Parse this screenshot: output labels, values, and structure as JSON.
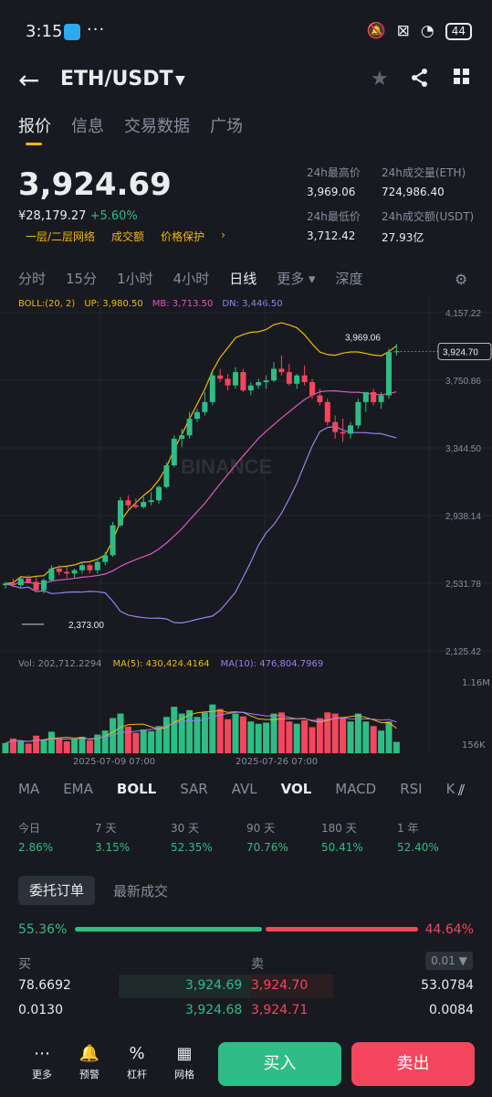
{
  "status": {
    "time": "3:15",
    "dots": "···",
    "battery": "44"
  },
  "header": {
    "back": "←",
    "pair": "ETH/USDT",
    "caret": "▼"
  },
  "tabs": [
    "报价",
    "信息",
    "交易数据",
    "广场"
  ],
  "price": {
    "last": "3,924.69",
    "fiat": "¥28,179.27",
    "change": "+5.60%"
  },
  "links": [
    "一层/二层网络",
    "成交额",
    "价格保护",
    "›"
  ],
  "stats": {
    "high_label": "24h最高价",
    "high": "3,969.06",
    "vol_eth_label": "24h成交量(ETH)",
    "vol_eth": "724,986.40",
    "low_label": "24h最低价",
    "low": "3,712.42",
    "vol_usdt_label": "24h成交额(USDT)",
    "vol_usdt": "27.93亿"
  },
  "intervals": [
    "分时",
    "15分",
    "1小时",
    "4小时",
    "日线",
    "更多 ▾",
    "深度"
  ],
  "boll": {
    "label": "BOLL:(20, 2)",
    "up": "UP: 3,980.50",
    "mb": "MB: 3,713.50",
    "dn": "DN: 3,446.50"
  },
  "price_axis": [
    "4,157.22",
    "3,750.86",
    "3,344.50",
    "2,938.14",
    "2,531.78",
    "2,125.42"
  ],
  "chart_labels": {
    "high_mark": "3,969.06",
    "low_mark": "2,373.00",
    "last_tag": "3,924.70",
    "watermark": "BINANCE"
  },
  "vol": {
    "label": "Vol: 202,712.2294",
    "ma5": "MA(5): 430,424.4164",
    "ma10": "MA(10): 476,804.7969",
    "axis_top": "1.16M",
    "axis_bot": "156K"
  },
  "dates": [
    "2025-07-09 07:00",
    "2025-07-26 07:00"
  ],
  "indicators": [
    "MA",
    "EMA",
    "BOLL",
    "SAR",
    "AVL",
    "VOL",
    "MACD",
    "RSI",
    "KD"
  ],
  "perf": [
    {
      "label": "今日",
      "value": "2.86%"
    },
    {
      "label": "7 天",
      "value": "3.15%"
    },
    {
      "label": "30 天",
      "value": "52.35%"
    },
    {
      "label": "90 天",
      "value": "70.76%"
    },
    {
      "label": "180 天",
      "value": "50.41%"
    },
    {
      "label": "1 年",
      "value": "52.40%"
    }
  ],
  "order": {
    "tab_active": "委托订单",
    "tab_other": "最新成交",
    "buy_ratio": "55.36%",
    "sell_ratio": "44.64%",
    "buy_header": "买",
    "sell_header": "卖",
    "precision": "0.01 ▼"
  },
  "orderbook": [
    {
      "bid_qty": "78.6692",
      "bid": "3,924.69",
      "ask": "3,924.70",
      "ask_qty": "53.0784"
    },
    {
      "bid_qty": "0.0130",
      "bid": "3,924.68",
      "ask": "3,924.71",
      "ask_qty": "0.0084"
    }
  ],
  "bottom": {
    "more": "更多",
    "alert": "预警",
    "leverage": "杠杆",
    "grid": "网格",
    "buy": "买入",
    "sell": "卖出"
  },
  "colors": {
    "bg": "#181a20",
    "up": "#2ebd85",
    "down": "#f6465d",
    "accent": "#f0b90b"
  },
  "chart_data": {
    "type": "candlestick",
    "yrange": [
      2125.42,
      4157.22
    ],
    "candles": [
      [
        2520,
        2540,
        2500,
        2530
      ],
      [
        2530,
        2560,
        2510,
        2520
      ],
      [
        2520,
        2570,
        2500,
        2560
      ],
      [
        2560,
        2580,
        2530,
        2540
      ],
      [
        2540,
        2570,
        2490,
        2490
      ],
      [
        2490,
        2560,
        2470,
        2550
      ],
      [
        2550,
        2640,
        2540,
        2620
      ],
      [
        2620,
        2640,
        2580,
        2600
      ],
      [
        2600,
        2630,
        2560,
        2590
      ],
      [
        2590,
        2620,
        2560,
        2610
      ],
      [
        2610,
        2660,
        2590,
        2640
      ],
      [
        2640,
        2650,
        2590,
        2610
      ],
      [
        2610,
        2680,
        2590,
        2660
      ],
      [
        2660,
        2720,
        2640,
        2700
      ],
      [
        2700,
        2900,
        2690,
        2880
      ],
      [
        2880,
        3050,
        2870,
        3030
      ],
      [
        3030,
        3060,
        2980,
        3000
      ],
      [
        3000,
        3040,
        2980,
        2990
      ],
      [
        2990,
        3050,
        2980,
        3020
      ],
      [
        3020,
        3080,
        3000,
        3030
      ],
      [
        3030,
        3120,
        3010,
        3110
      ],
      [
        3110,
        3260,
        3100,
        3240
      ],
      [
        3240,
        3420,
        3230,
        3400
      ],
      [
        3400,
        3460,
        3350,
        3420
      ],
      [
        3420,
        3560,
        3400,
        3520
      ],
      [
        3520,
        3580,
        3500,
        3560
      ],
      [
        3560,
        3680,
        3540,
        3620
      ],
      [
        3620,
        3800,
        3600,
        3780
      ],
      [
        3780,
        3820,
        3740,
        3760
      ],
      [
        3760,
        3790,
        3690,
        3720
      ],
      [
        3720,
        3830,
        3700,
        3800
      ],
      [
        3800,
        3820,
        3680,
        3690
      ],
      [
        3690,
        3740,
        3660,
        3720
      ],
      [
        3720,
        3760,
        3700,
        3740
      ],
      [
        3740,
        3780,
        3700,
        3750
      ],
      [
        3750,
        3860,
        3740,
        3820
      ],
      [
        3820,
        3900,
        3780,
        3800
      ],
      [
        3800,
        3850,
        3720,
        3730
      ],
      [
        3730,
        3790,
        3700,
        3780
      ],
      [
        3780,
        3840,
        3720,
        3740
      ],
      [
        3740,
        3760,
        3640,
        3660
      ],
      [
        3660,
        3700,
        3600,
        3620
      ],
      [
        3620,
        3640,
        3480,
        3500
      ],
      [
        3500,
        3540,
        3400,
        3440
      ],
      [
        3440,
        3520,
        3380,
        3430
      ],
      [
        3430,
        3500,
        3400,
        3480
      ],
      [
        3480,
        3640,
        3460,
        3620
      ],
      [
        3620,
        3680,
        3560,
        3680
      ],
      [
        3680,
        3700,
        3600,
        3620
      ],
      [
        3620,
        3680,
        3580,
        3660
      ],
      [
        3660,
        3940,
        3640,
        3920
      ],
      [
        3920,
        3970,
        3900,
        3925
      ]
    ],
    "volumes": [
      180,
      260,
      220,
      170,
      310,
      240,
      380,
      260,
      210,
      250,
      290,
      230,
      330,
      400,
      620,
      700,
      470,
      360,
      420,
      390,
      480,
      640,
      820,
      700,
      760,
      640,
      720,
      860,
      780,
      600,
      700,
      650,
      560,
      520,
      540,
      700,
      720,
      560,
      520,
      580,
      460,
      620,
      720,
      700,
      640,
      560,
      700,
      560,
      480,
      400,
      560,
      200
    ]
  }
}
